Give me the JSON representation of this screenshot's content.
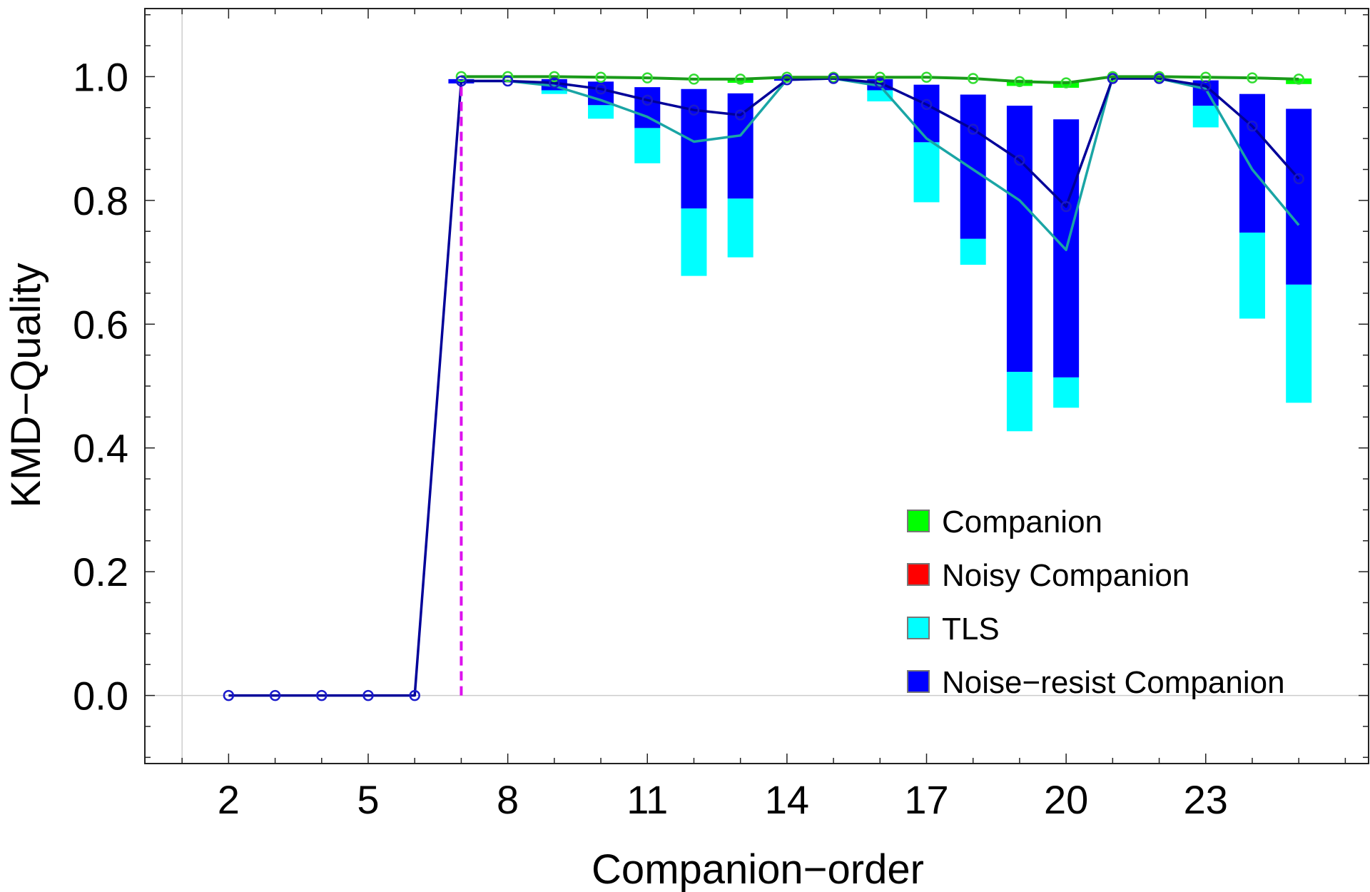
{
  "chart_data": {
    "type": "bar",
    "xlabel": "Companion−order",
    "ylabel": "KMD−Quality",
    "xlim": [
      0.2,
      26.5
    ],
    "ylim": [
      -0.11,
      1.11
    ],
    "xticks": [
      "2",
      "5",
      "8",
      "11",
      "14",
      "17",
      "20",
      "23"
    ],
    "yticks": [
      "0.0",
      "0.2",
      "0.4",
      "0.6",
      "0.8",
      "1.0"
    ],
    "threshold_x": 7,
    "legend_position": "bottom-right",
    "legend": [
      {
        "name": "Companion",
        "color": "#00ff00"
      },
      {
        "name": "Noisy Companion",
        "color": "#ff0000"
      },
      {
        "name": "TLS",
        "color": "#00ffff"
      },
      {
        "name": "Noise−resist Companion",
        "color": "#0000ff"
      }
    ],
    "x": [
      2,
      3,
      4,
      5,
      6,
      7,
      8,
      9,
      10,
      11,
      12,
      13,
      14,
      15,
      16,
      17,
      18,
      19,
      20,
      21,
      22,
      23,
      24,
      25
    ],
    "series": [
      {
        "name": "Companion",
        "color": "#00ff00",
        "line_color": "#1a9a1a",
        "marker_color": "#33dd33",
        "values": [
          null,
          null,
          null,
          null,
          null,
          1.0,
          1.0,
          1.0,
          0.999,
          0.998,
          0.996,
          0.996,
          0.999,
          0.999,
          0.999,
          0.999,
          0.997,
          0.992,
          0.99,
          1.0,
          1.0,
          0.999,
          0.998,
          0.996
        ],
        "bar_low": [
          null,
          null,
          null,
          null,
          null,
          null,
          null,
          null,
          null,
          null,
          null,
          0.99,
          null,
          null,
          null,
          null,
          null,
          0.985,
          0.982,
          null,
          null,
          null,
          null,
          0.988
        ],
        "bar_high": [
          null,
          null,
          null,
          null,
          null,
          null,
          null,
          null,
          null,
          null,
          null,
          0.997,
          null,
          null,
          null,
          null,
          null,
          0.995,
          0.993,
          null,
          null,
          null,
          null,
          0.997
        ]
      },
      {
        "name": "TLS",
        "color": "#00ffff",
        "line_color": "#1aa5a5",
        "values": [
          null,
          null,
          null,
          null,
          null,
          0.993,
          0.993,
          0.985,
          0.962,
          0.935,
          0.895,
          0.905,
          0.995,
          0.997,
          0.985,
          0.9,
          0.85,
          0.8,
          0.72,
          1.0,
          0.997,
          0.98,
          0.85,
          0.76
        ],
        "bar_low": [
          null,
          null,
          null,
          null,
          null,
          null,
          null,
          0.972,
          0.932,
          0.86,
          0.678,
          0.708,
          null,
          null,
          0.96,
          0.797,
          0.696,
          0.427,
          0.465,
          null,
          null,
          0.918,
          0.609,
          0.473
        ],
        "bar_high": [
          null,
          null,
          null,
          null,
          null,
          null,
          null,
          0.992,
          0.954,
          0.917,
          0.787,
          0.803,
          null,
          null,
          0.978,
          0.894,
          0.738,
          0.523,
          0.514,
          null,
          null,
          0.953,
          0.748,
          0.664
        ]
      },
      {
        "name": "Noise−resist Companion",
        "color": "#0000ff",
        "line_color": "#000099",
        "marker_color": "#1a1acc",
        "values": [
          0.0,
          0.0,
          0.0,
          0.0,
          0.0,
          0.993,
          0.993,
          0.99,
          0.98,
          0.962,
          0.946,
          0.938,
          0.995,
          0.997,
          0.99,
          0.955,
          0.915,
          0.865,
          0.79,
          0.997,
          0.997,
          0.985,
          0.92,
          0.835
        ],
        "bar_low": [
          null,
          null,
          null,
          null,
          null,
          0.989,
          null,
          0.978,
          0.954,
          0.917,
          0.787,
          0.803,
          0.995,
          null,
          0.978,
          0.894,
          0.738,
          0.523,
          0.514,
          null,
          null,
          0.953,
          0.748,
          0.664
        ],
        "bar_high": [
          null,
          null,
          null,
          null,
          null,
          0.996,
          null,
          0.996,
          0.992,
          0.983,
          0.98,
          0.973,
          0.998,
          null,
          0.996,
          0.987,
          0.971,
          0.953,
          0.931,
          null,
          null,
          0.994,
          0.972,
          0.948
        ]
      }
    ]
  }
}
